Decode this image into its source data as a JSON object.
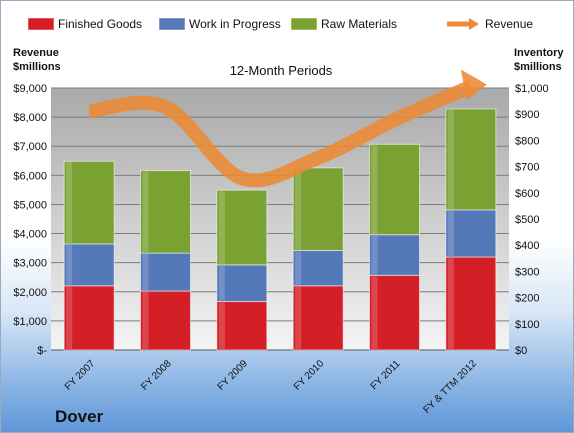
{
  "chart_data": {
    "type": "bar",
    "subtitle": "12-Month Periods",
    "categories": [
      "FY 2007",
      "FY 2008",
      "FY 2009",
      "FY 2010",
      "FY 2011",
      "FY & TTM 2012"
    ],
    "series": [
      {
        "name": "Finished Goods",
        "axis": "right",
        "values": [
          245,
          225,
          185,
          245,
          285,
          355
        ],
        "color": "#d41f26"
      },
      {
        "name": "Work in Progress",
        "axis": "right",
        "values": [
          160,
          145,
          140,
          135,
          155,
          180
        ],
        "color": "#5478b8"
      },
      {
        "name": "Raw Materials",
        "axis": "right",
        "values": [
          315,
          315,
          285,
          315,
          345,
          385
        ],
        "color": "#7aa232"
      },
      {
        "name": "Revenue",
        "axis": "left",
        "type": "line",
        "values": [
          8200,
          8350,
          5900,
          6600,
          7900,
          9050
        ],
        "color": "#ec8a35"
      }
    ],
    "stacked": true,
    "left_axis": {
      "title": [
        "Revenue",
        "$millions"
      ],
      "range": [
        0,
        9000
      ],
      "ticks": [
        "$-",
        "$1,000",
        "$2,000",
        "$3,000",
        "$4,000",
        "$5,000",
        "$6,000",
        "$7,000",
        "$8,000",
        "$9,000"
      ]
    },
    "right_axis": {
      "title": [
        "Inventory",
        "$millions"
      ],
      "range": [
        0,
        1000
      ],
      "ticks": [
        "$0",
        "$100",
        "$200",
        "$300",
        "$400",
        "$500",
        "$600",
        "$700",
        "$800",
        "$900",
        "$1,000"
      ]
    },
    "grid": true,
    "legend_position": "top"
  },
  "company": "Dover"
}
